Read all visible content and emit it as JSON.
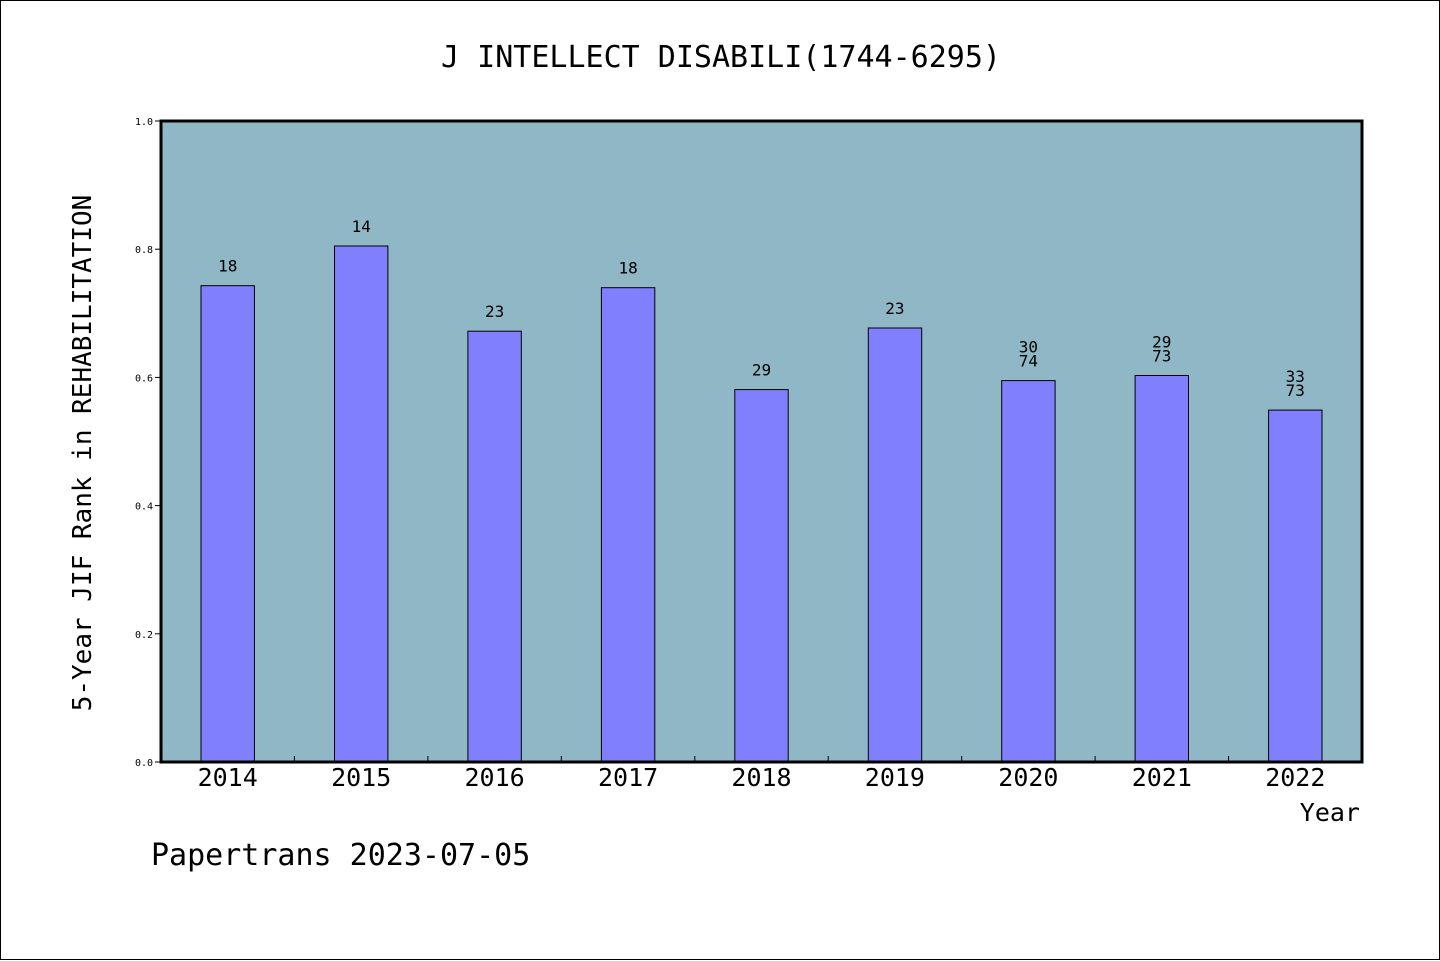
{
  "chart_data": {
    "type": "bar",
    "title": "J INTELLECT DISABILI(1744-6295)",
    "xlabel": "Year",
    "ylabel": "5-Year JIF Rank in REHABILITATION",
    "ylim": [
      0.0,
      1.0
    ],
    "yticks": [
      "0.0",
      "0.2",
      "0.4",
      "0.6",
      "0.8",
      "1.0"
    ],
    "grid": false,
    "categories": [
      "2014",
      "2015",
      "2016",
      "2017",
      "2018",
      "2019",
      "2020",
      "2021",
      "2022"
    ],
    "values": [
      0.743,
      0.805,
      0.672,
      0.74,
      0.581,
      0.677,
      0.595,
      0.603,
      0.549
    ],
    "bar_labels": [
      "18",
      "14",
      "23",
      "18",
      "29",
      "23",
      "30\n74",
      "29\n73",
      "33\n73"
    ],
    "colors": {
      "plot_background": "#8fb7c6",
      "bar": "#8080ff",
      "bar_edge": "#000000"
    }
  },
  "footer": "Papertrans 2023-07-05"
}
